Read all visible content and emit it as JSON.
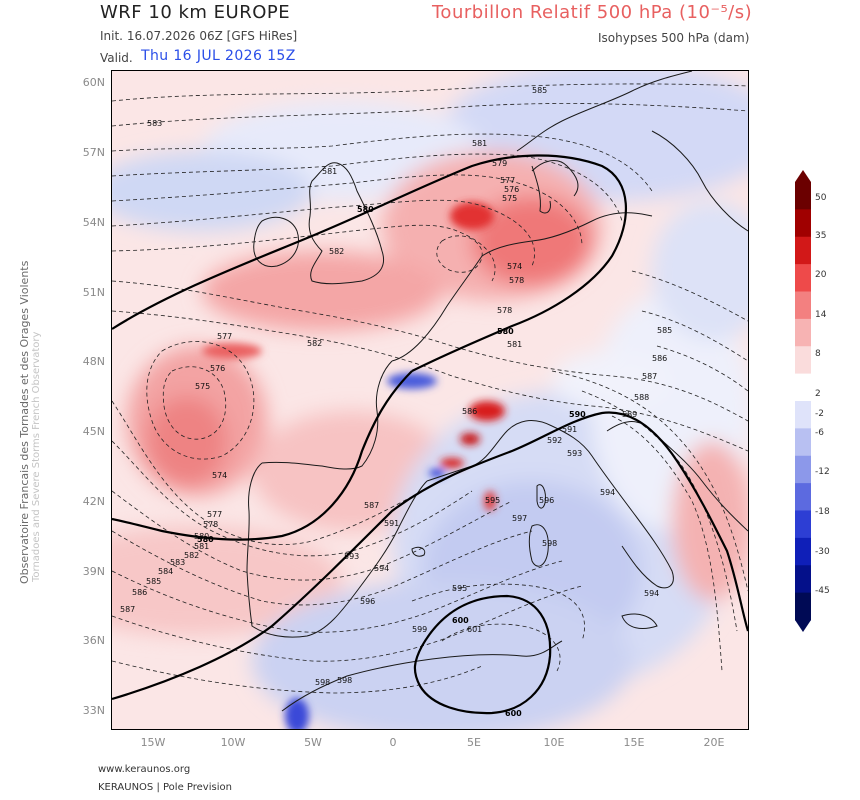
{
  "header": {
    "title": "WRF 10 km EUROPE",
    "variable_title": "Tourbillon Relatif 500 hPa (10⁻⁵/s)",
    "init_line": "Init.  16.07.2026 06Z [GFS HiRes]",
    "subtitle": "Isohypses 500 hPa (dam)",
    "valid_label": "Valid.",
    "valid_date": "Thu 16 JUL 2026 15Z"
  },
  "axes": {
    "lat_labels": [
      "60N",
      "57N",
      "54N",
      "51N",
      "48N",
      "45N",
      "42N",
      "39N",
      "36N",
      "33N"
    ],
    "lon_labels": [
      "15W",
      "10W",
      "5W",
      "0",
      "5E",
      "10E",
      "15E",
      "20E"
    ]
  },
  "side_text": {
    "line1": "Observatoire Francais des Tornades et des Orages Violents",
    "line2": "Tornadoes and Severe Storms French Observatory"
  },
  "colorbar": {
    "labels": [
      "50",
      "35",
      "20",
      "14",
      "8",
      "2",
      "-2",
      "-6",
      "-12",
      "-18",
      "-30",
      "-45"
    ],
    "colors": [
      "#6b0000",
      "#a00000",
      "#d21818",
      "#ee4a4a",
      "#f38080",
      "#f7b3b3",
      "#fadcdc",
      "#ffffff",
      "#dfe3fa",
      "#b8c0f2",
      "#8c98ea",
      "#5c6ae0",
      "#2d3ed4",
      "#0f1fb8",
      "#04108a",
      "#000a55"
    ]
  },
  "contours": {
    "bold_values": [
      "580",
      "580",
      "580",
      "590",
      "600",
      "600"
    ],
    "dashed_values": [
      "585",
      "583",
      "581",
      "579",
      "577",
      "576",
      "575",
      "574",
      "578",
      "581",
      "578",
      "577",
      "576",
      "575",
      "574",
      "577",
      "578",
      "580",
      "581",
      "582",
      "583",
      "584",
      "585",
      "586",
      "587",
      "587",
      "591",
      "593",
      "594",
      "596",
      "598",
      "599",
      "601",
      "598",
      "586",
      "585",
      "586",
      "587",
      "588",
      "589",
      "591",
      "592",
      "593",
      "594",
      "595",
      "596",
      "597",
      "598",
      "595",
      "594",
      "582",
      "582",
      "581"
    ]
  },
  "footer": {
    "url": "www.keraunos.org",
    "brand": "KERAUNOS | Pole Prevision"
  }
}
